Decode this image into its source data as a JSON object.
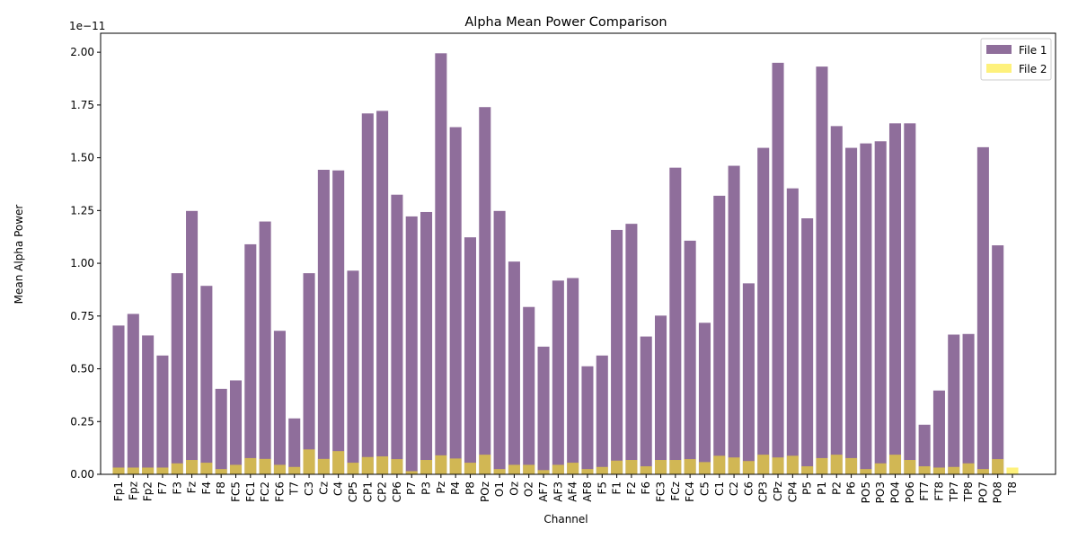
{
  "chart_data": {
    "type": "bar",
    "title": "Alpha Mean Power Comparison",
    "xlabel": "Channel",
    "ylabel": "Mean Alpha Power",
    "y_offset_label": "1e−11",
    "ylim": [
      0,
      2.09
    ],
    "yticks": [
      "0.00",
      "0.25",
      "0.50",
      "0.75",
      "1.00",
      "1.25",
      "1.50",
      "1.75",
      "2.00"
    ],
    "ytick_values": [
      0,
      0.25,
      0.5,
      0.75,
      1.0,
      1.25,
      1.5,
      1.75,
      2.0
    ],
    "legend_position": "top-right",
    "categories": [
      "Fp1",
      "Fpz",
      "Fp2",
      "F7",
      "F3",
      "Fz",
      "F4",
      "F8",
      "FC5",
      "FC1",
      "FC2",
      "FC6",
      "T7",
      "C3",
      "Cz",
      "C4",
      "CP5",
      "CP1",
      "CP2",
      "CP6",
      "P7",
      "P3",
      "Pz",
      "P4",
      "P8",
      "POz",
      "O1",
      "Oz",
      "O2",
      "AF7",
      "AF3",
      "AF4",
      "AF8",
      "F5",
      "F1",
      "F2",
      "F6",
      "FC3",
      "FCz",
      "FC4",
      "C5",
      "C1",
      "C2",
      "C6",
      "CP3",
      "CPz",
      "CP4",
      "P5",
      "P1",
      "P2",
      "P6",
      "PO5",
      "PO3",
      "PO4",
      "PO6",
      "FT7",
      "FT8",
      "TP7",
      "TP8",
      "PO7",
      "PO8",
      "T8"
    ],
    "series": [
      {
        "name": "File 1",
        "color": "#6a3d7a",
        "opacity": 0.75,
        "values": [
          0.705,
          0.76,
          0.658,
          0.563,
          0.953,
          1.248,
          0.893,
          0.405,
          0.445,
          1.09,
          1.198,
          0.68,
          0.265,
          0.953,
          1.443,
          1.44,
          0.965,
          1.71,
          1.722,
          1.325,
          1.222,
          1.243,
          1.995,
          1.645,
          1.123,
          1.74,
          1.248,
          1.008,
          0.793,
          0.605,
          0.918,
          0.93,
          0.512,
          0.563,
          1.158,
          1.187,
          0.653,
          0.752,
          1.453,
          1.107,
          0.718,
          1.32,
          1.462,
          0.905,
          1.547,
          1.95,
          1.355,
          1.213,
          1.932,
          1.65,
          1.547,
          1.568,
          1.578,
          1.663,
          1.663,
          0.235,
          0.397,
          0.662,
          0.665,
          1.55,
          1.085,
          0.0
        ]
      },
      {
        "name": "File 2",
        "color": "#fde725",
        "opacity": 0.6,
        "values": [
          0.032,
          0.032,
          0.032,
          0.032,
          0.052,
          0.068,
          0.055,
          0.025,
          0.045,
          0.077,
          0.073,
          0.045,
          0.035,
          0.118,
          0.073,
          0.11,
          0.055,
          0.082,
          0.085,
          0.072,
          0.015,
          0.068,
          0.09,
          0.075,
          0.055,
          0.093,
          0.025,
          0.045,
          0.045,
          0.02,
          0.045,
          0.055,
          0.025,
          0.035,
          0.065,
          0.068,
          0.038,
          0.068,
          0.068,
          0.072,
          0.058,
          0.088,
          0.08,
          0.063,
          0.093,
          0.08,
          0.088,
          0.038,
          0.077,
          0.093,
          0.077,
          0.025,
          0.052,
          0.093,
          0.068,
          0.038,
          0.032,
          0.035,
          0.052,
          0.025,
          0.072,
          0.032
        ]
      }
    ]
  }
}
